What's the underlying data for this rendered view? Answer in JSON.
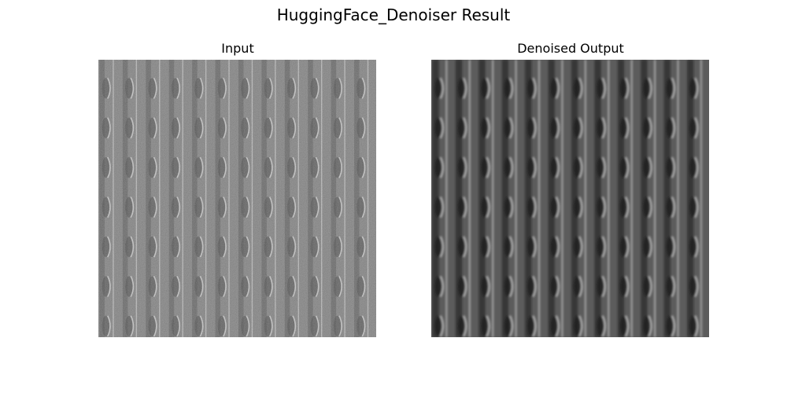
{
  "figure": {
    "title": "HuggingFace_Denoiser Result"
  },
  "panels": [
    {
      "title": "Input",
      "kind": "noisy"
    },
    {
      "title": "Denoised Output",
      "kind": "denoised"
    }
  ]
}
